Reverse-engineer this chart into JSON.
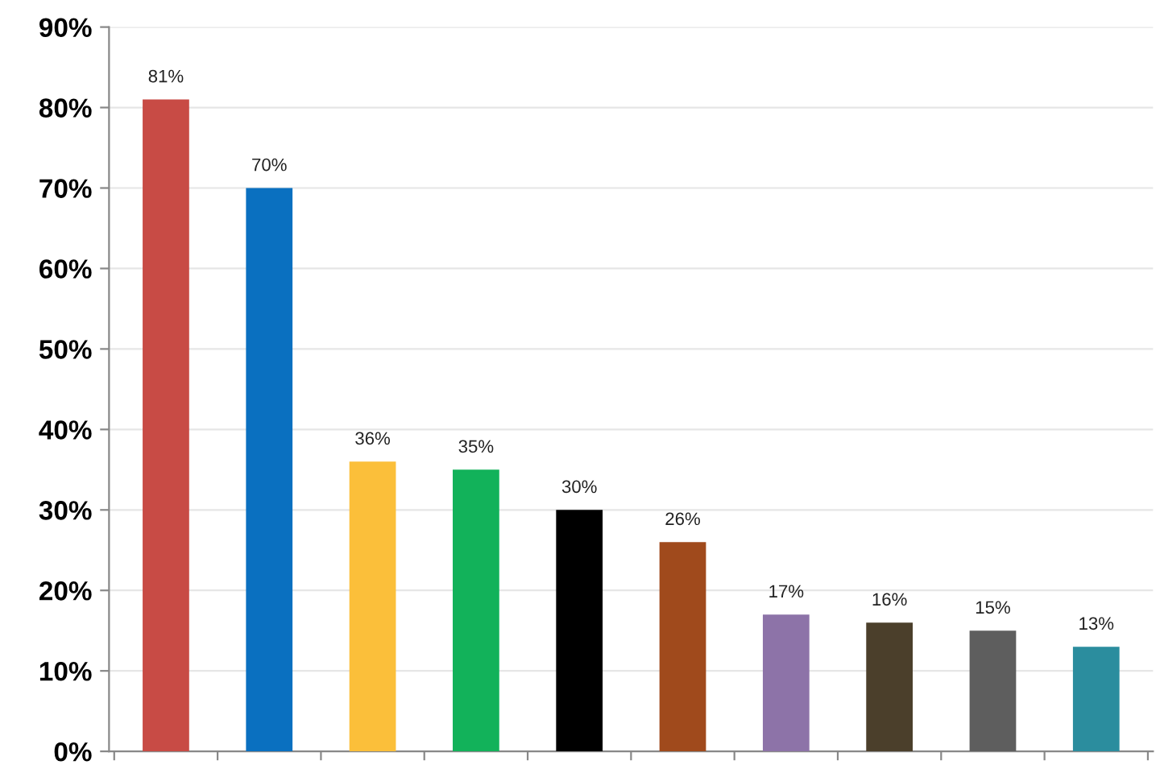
{
  "chart_data": {
    "type": "bar",
    "categories": [
      null,
      null,
      null,
      null,
      null,
      null,
      null,
      null,
      null,
      null
    ],
    "values": [
      81,
      70,
      36,
      35,
      30,
      26,
      17,
      16,
      15,
      13
    ],
    "colors": [
      "#c84b45",
      "#0a70c0",
      "#fbbf3a",
      "#12b25a",
      "#000000",
      "#a04a1c",
      "#8d73a8",
      "#4b3f2b",
      "#5e5e5e",
      "#2b8d9e"
    ],
    "value_labels": [
      "81%",
      "70%",
      "36%",
      "35%",
      "30%",
      "26%",
      "17%",
      "16%",
      "15%",
      "13%"
    ],
    "ylim": [
      0,
      90
    ],
    "yticks": [
      {
        "value": 0,
        "label": "0%"
      },
      {
        "value": 10,
        "label": "10%"
      },
      {
        "value": 20,
        "label": "20%"
      },
      {
        "value": 30,
        "label": "30%"
      },
      {
        "value": 40,
        "label": "40%"
      },
      {
        "value": 50,
        "label": "50%"
      },
      {
        "value": 60,
        "label": "60%"
      },
      {
        "value": 70,
        "label": "70%"
      },
      {
        "value": 80,
        "label": "80%"
      },
      {
        "value": 90,
        "label": "90%"
      }
    ],
    "grid": "y",
    "legend": false
  }
}
